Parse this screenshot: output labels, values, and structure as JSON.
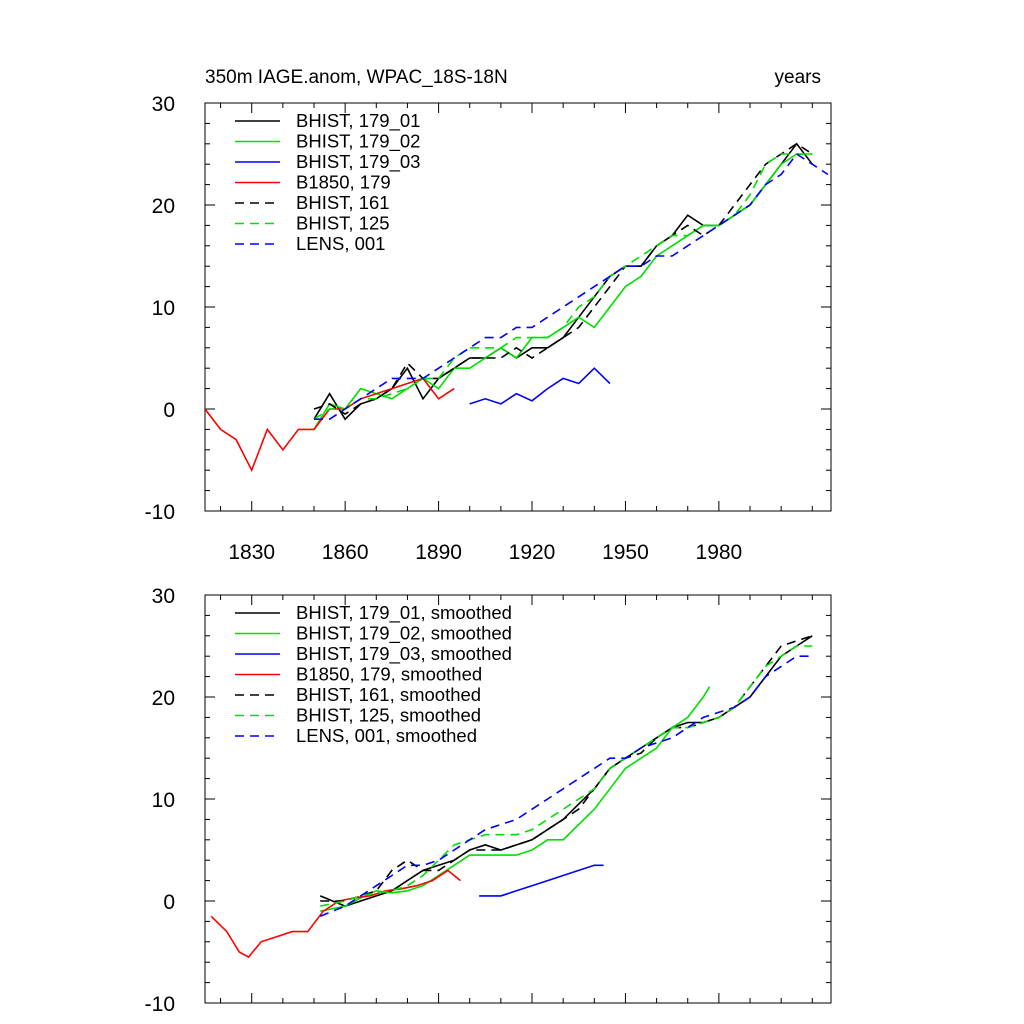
{
  "chart_data": [
    {
      "type": "line",
      "title_left": "350m IAGE.anom, WPAC_18S-18N",
      "title_right": "years",
      "xlim": [
        1815,
        2016
      ],
      "ylim": [
        -10,
        30
      ],
      "xticks": [
        1830,
        1860,
        1890,
        1920,
        1950,
        1980
      ],
      "xtick_labels": [
        "1830",
        "1860",
        "1890",
        "1920",
        "1950",
        "1980"
      ],
      "yticks": [
        -10,
        0,
        10,
        20,
        30
      ],
      "ytick_labels": [
        "-10",
        "0",
        "10",
        "20",
        "30"
      ],
      "grid": false,
      "legend": "top-left",
      "series": [
        {
          "name": "BHIST, 179_01",
          "color": "#000000",
          "dash": false,
          "x": [
            1850,
            1855,
            1860,
            1865,
            1870,
            1875,
            1880,
            1885,
            1890,
            1895,
            1900,
            1905,
            1910,
            1915,
            1920,
            1925,
            1930,
            1935,
            1940,
            1945,
            1950,
            1955,
            1960,
            1965,
            1970,
            1975,
            1980,
            1985,
            1990,
            1995,
            2000,
            2005,
            2010
          ],
          "y": [
            -1,
            1.5,
            -1,
            0.5,
            1,
            2,
            4,
            1,
            3,
            4,
            5,
            5,
            6,
            5,
            6,
            6,
            7,
            9,
            11,
            13,
            14,
            14,
            16,
            17,
            19,
            18,
            18,
            19,
            20,
            22,
            24,
            26,
            24
          ]
        },
        {
          "name": "BHIST, 179_02",
          "color": "#00e000",
          "dash": false,
          "x": [
            1850,
            1855,
            1860,
            1865,
            1870,
            1875,
            1880,
            1885,
            1890,
            1895,
            1900,
            1905,
            1910,
            1915,
            1920,
            1925,
            1930,
            1935,
            1940,
            1945,
            1950,
            1955,
            1960,
            1965,
            1970,
            1975,
            1980,
            1985,
            1990,
            1995,
            2000,
            2005,
            2010
          ],
          "y": [
            -2,
            0.5,
            0,
            2,
            1.5,
            1,
            2,
            3,
            2,
            4,
            4,
            5,
            6,
            5,
            7,
            7,
            8,
            9,
            8,
            10,
            12,
            13,
            15,
            16,
            17,
            18,
            18,
            19,
            20,
            22,
            24,
            25,
            25
          ]
        },
        {
          "name": "BHIST, 179_03",
          "color": "#0000ff",
          "dash": false,
          "x": [
            1900,
            1905,
            1910,
            1915,
            1920,
            1925,
            1930,
            1935,
            1940,
            1945
          ],
          "y": [
            0.5,
            1,
            0.5,
            1.5,
            0.8,
            2,
            3,
            2.5,
            4,
            2.5
          ]
        },
        {
          "name": "B1850, 179",
          "color": "#ff0000",
          "dash": false,
          "x": [
            1815,
            1820,
            1825,
            1830,
            1835,
            1840,
            1845,
            1850,
            1855,
            1860,
            1865,
            1870,
            1875,
            1880,
            1885,
            1890,
            1895
          ],
          "y": [
            0,
            -2,
            -3,
            -6,
            -2,
            -4,
            -2,
            -2,
            0,
            0,
            1,
            1.5,
            2,
            2.5,
            3,
            1,
            2
          ]
        },
        {
          "name": "BHIST, 161",
          "color": "#000000",
          "dash": true,
          "x": [
            1850,
            1855,
            1860,
            1865,
            1870,
            1875,
            1880,
            1885,
            1890,
            1895,
            1900,
            1905,
            1910,
            1915,
            1920,
            1925,
            1930,
            1935,
            1940,
            1945,
            1950,
            1955,
            1960,
            1965,
            1970,
            1975,
            1980,
            1985,
            1990,
            1995,
            2000,
            2005,
            2010
          ],
          "y": [
            0,
            0.5,
            -0.5,
            0.5,
            1,
            2,
            4.5,
            3,
            3,
            4,
            5,
            5,
            5,
            6,
            5,
            6,
            7,
            8,
            10,
            12,
            14,
            14,
            16,
            17,
            18,
            17,
            18,
            20,
            22,
            24,
            25,
            26,
            25
          ]
        },
        {
          "name": "BHIST, 125",
          "color": "#00e000",
          "dash": true,
          "x": [
            1850,
            1855,
            1860,
            1865,
            1870,
            1875,
            1880,
            1885,
            1890,
            1895,
            1900,
            1905,
            1910,
            1915,
            1920,
            1925,
            1930,
            1935,
            1940,
            1945,
            1950,
            1955,
            1960,
            1965,
            1970,
            1975,
            1980,
            1985,
            1990,
            1995,
            2000,
            2005,
            2010
          ],
          "y": [
            -1,
            0,
            0,
            1,
            1,
            1.5,
            2,
            3,
            3,
            5,
            6,
            6,
            6,
            7,
            7,
            7,
            8,
            10,
            11,
            13,
            14,
            15,
            16,
            17,
            17,
            18,
            18,
            19,
            21,
            24,
            25,
            25,
            25
          ]
        },
        {
          "name": "LENS, 001",
          "color": "#0000ff",
          "dash": true,
          "x": [
            1850,
            1855,
            1860,
            1865,
            1870,
            1875,
            1880,
            1885,
            1890,
            1895,
            1900,
            1905,
            1910,
            1915,
            1920,
            1925,
            1930,
            1935,
            1940,
            1945,
            1950,
            1955,
            1960,
            1965,
            1970,
            1975,
            1980,
            1985,
            1990,
            1995,
            2000,
            2005,
            2010,
            2015
          ],
          "y": [
            -1,
            -1,
            0,
            1,
            2,
            3,
            3,
            3,
            4,
            5,
            6,
            7,
            7,
            8,
            8,
            9,
            10,
            11,
            12,
            13,
            14,
            14,
            15,
            15,
            16,
            17,
            18,
            19,
            20,
            22,
            23,
            25,
            24,
            23
          ]
        }
      ]
    },
    {
      "type": "line",
      "xlim": [
        1815,
        2016
      ],
      "ylim": [
        -10,
        30
      ],
      "xticks": [
        1830,
        1860,
        1890,
        1920,
        1950,
        1980
      ],
      "yticks": [
        -10,
        0,
        10,
        20,
        30
      ],
      "ytick_labels": [
        "-10",
        "0",
        "10",
        "20",
        "30"
      ],
      "grid": false,
      "legend": "top-left",
      "series": [
        {
          "name": "BHIST, 179_01, smoothed",
          "color": "#000000",
          "dash": false,
          "x": [
            1852,
            1860,
            1865,
            1870,
            1875,
            1880,
            1885,
            1890,
            1895,
            1900,
            1905,
            1910,
            1915,
            1920,
            1925,
            1930,
            1935,
            1940,
            1945,
            1950,
            1955,
            1960,
            1965,
            1970,
            1975,
            1980,
            1985,
            1990,
            1995,
            2000,
            2005,
            2010
          ],
          "y": [
            0.5,
            -0.5,
            0,
            0.5,
            1,
            2,
            3,
            3.5,
            4,
            5,
            5.5,
            5,
            5.5,
            6,
            7,
            8,
            9.5,
            11,
            13,
            14,
            15,
            16,
            17,
            17.5,
            17.5,
            18,
            19,
            20,
            22,
            24,
            25,
            26
          ]
        },
        {
          "name": "BHIST, 179_02, smoothed",
          "color": "#00e000",
          "dash": false,
          "x": [
            1852,
            1860,
            1865,
            1870,
            1875,
            1880,
            1885,
            1890,
            1895,
            1900,
            1905,
            1910,
            1915,
            1920,
            1925,
            1930,
            1935,
            1940,
            1945,
            1950,
            1955,
            1960,
            1965,
            1970,
            1975,
            1977
          ],
          "y": [
            -1,
            -0.5,
            0.3,
            1,
            0.8,
            1,
            1.5,
            2.5,
            3.5,
            4.5,
            4.5,
            4.5,
            4.5,
            5,
            6,
            6,
            7.5,
            9,
            11,
            13,
            14,
            15,
            17,
            18,
            20,
            21
          ]
        },
        {
          "name": "BHIST, 179_03, smoothed",
          "color": "#0000ff",
          "dash": false,
          "x": [
            1903,
            1910,
            1915,
            1920,
            1925,
            1930,
            1935,
            1940,
            1943
          ],
          "y": [
            0.5,
            0.5,
            1,
            1.5,
            2,
            2.5,
            3,
            3.5,
            3.5
          ]
        },
        {
          "name": "B1850, 179, smoothed",
          "color": "#ff0000",
          "dash": false,
          "x": [
            1817,
            1822,
            1826,
            1829,
            1833,
            1838,
            1843,
            1848,
            1853,
            1858,
            1863,
            1868,
            1873,
            1878,
            1883,
            1888,
            1893,
            1897
          ],
          "y": [
            -1.5,
            -3,
            -5,
            -5.5,
            -4,
            -3.5,
            -3,
            -3,
            -1,
            0,
            0.3,
            0.5,
            1,
            1.2,
            1.5,
            2,
            3,
            2
          ]
        },
        {
          "name": "BHIST, 161, smoothed",
          "color": "#000000",
          "dash": true,
          "x": [
            1852,
            1860,
            1865,
            1870,
            1875,
            1880,
            1885,
            1890,
            1895,
            1900,
            1905,
            1910,
            1915,
            1920,
            1925,
            1930,
            1935,
            1940,
            1945,
            1950,
            1955,
            1960,
            1965,
            1970,
            1975,
            1980,
            1985,
            1990,
            1995,
            2000,
            2005,
            2010
          ],
          "y": [
            0,
            0,
            0.5,
            1,
            3,
            4,
            3,
            3,
            4,
            5,
            5,
            5,
            5.5,
            6,
            7,
            8,
            9,
            11,
            13,
            14,
            14.5,
            16,
            17,
            17,
            17.5,
            18,
            19,
            21,
            23,
            25,
            25.5,
            26
          ]
        },
        {
          "name": "BHIST, 125, smoothed",
          "color": "#00e000",
          "dash": true,
          "x": [
            1852,
            1860,
            1865,
            1870,
            1875,
            1880,
            1885,
            1890,
            1895,
            1900,
            1905,
            1910,
            1915,
            1920,
            1925,
            1930,
            1935,
            1940,
            1945,
            1950,
            1955,
            1960,
            1965,
            1970,
            1975,
            1980,
            1985,
            1990,
            1995,
            2000,
            2005,
            2010
          ],
          "y": [
            -0.5,
            0,
            0.5,
            0.8,
            1,
            1.5,
            2.5,
            4,
            5.5,
            6,
            6.5,
            6.5,
            6.5,
            7,
            8,
            9,
            10,
            11,
            13,
            14,
            15,
            16,
            17,
            17,
            17.5,
            18,
            19,
            21,
            23,
            24,
            25,
            25
          ]
        },
        {
          "name": "LENS, 001, smoothed",
          "color": "#0000ff",
          "dash": true,
          "x": [
            1852,
            1860,
            1865,
            1870,
            1875,
            1880,
            1885,
            1890,
            1895,
            1900,
            1905,
            1910,
            1915,
            1920,
            1925,
            1930,
            1935,
            1940,
            1945,
            1950,
            1955,
            1960,
            1965,
            1970,
            1975,
            1980,
            1985,
            1990,
            1995,
            2000,
            2005,
            2010
          ],
          "y": [
            -1.5,
            -0.5,
            0.5,
            1.5,
            2.5,
            3.5,
            3.5,
            4,
            5,
            6,
            7,
            7.5,
            8,
            9,
            10,
            11,
            12,
            13,
            14,
            14,
            15,
            15.5,
            16,
            17,
            18,
            18.5,
            19,
            20,
            22,
            23,
            24,
            24
          ]
        }
      ]
    }
  ]
}
